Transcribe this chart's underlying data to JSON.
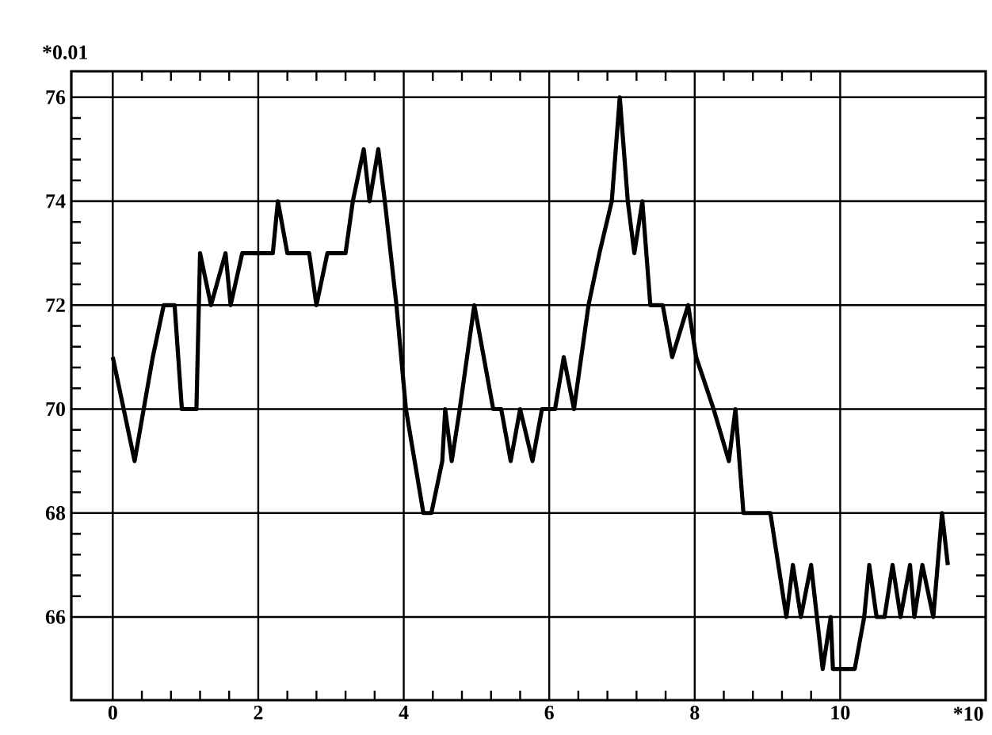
{
  "chart_data": {
    "type": "line",
    "xlabel": "*10",
    "ylabel": "*0.01",
    "xlim": [
      -0.57,
      12
    ],
    "ylim": [
      64.4,
      76.5
    ],
    "xticks": [
      0,
      2,
      4,
      6,
      8,
      10
    ],
    "yticks": [
      66,
      68,
      70,
      72,
      74,
      76
    ],
    "grid": true,
    "marker": "none",
    "line_style": "solid",
    "x": [
      0,
      0.3,
      0.55,
      0.7,
      0.85,
      0.95,
      1.15,
      1.2,
      1.35,
      1.55,
      1.62,
      1.78,
      2.2,
      2.27,
      2.4,
      2.7,
      2.8,
      2.95,
      3.2,
      3.3,
      3.45,
      3.53,
      3.65,
      3.74,
      3.9,
      4.03,
      4.27,
      4.38,
      4.53,
      4.57,
      4.66,
      4.77,
      4.97,
      5.23,
      5.34,
      5.47,
      5.6,
      5.77,
      5.9,
      6.08,
      6.2,
      6.34,
      6.54,
      6.69,
      6.86,
      6.97,
      7.08,
      7.17,
      7.28,
      7.39,
      7.56,
      7.69,
      7.91,
      8.02,
      8.26,
      8.47,
      8.56,
      8.67,
      9.04,
      9.26,
      9.35,
      9.46,
      9.6,
      9.76,
      9.87,
      9.9,
      10.2,
      10.33,
      10.4,
      10.5,
      10.61,
      10.72,
      10.83,
      10.96,
      11.02,
      11.13,
      11.28,
      11.4,
      11.48
    ],
    "series": [
      {
        "color": "#000000",
        "values": [
          71,
          69,
          71,
          72,
          72,
          70,
          70,
          73,
          72,
          73,
          72,
          73,
          73,
          74,
          73,
          73,
          72,
          73,
          73,
          74,
          75,
          74,
          75,
          74,
          72,
          70,
          68,
          68,
          69,
          70,
          69,
          70,
          72,
          70,
          70,
          69,
          70,
          69,
          70,
          70,
          71,
          70,
          72,
          73,
          74,
          76,
          74,
          73,
          74,
          72,
          72,
          71,
          72,
          71,
          70,
          69,
          70,
          68,
          68,
          66,
          67,
          66,
          67,
          65,
          66,
          65,
          65,
          66,
          67,
          66,
          66,
          67,
          66,
          67,
          66,
          67,
          66,
          68,
          67
        ]
      }
    ]
  }
}
